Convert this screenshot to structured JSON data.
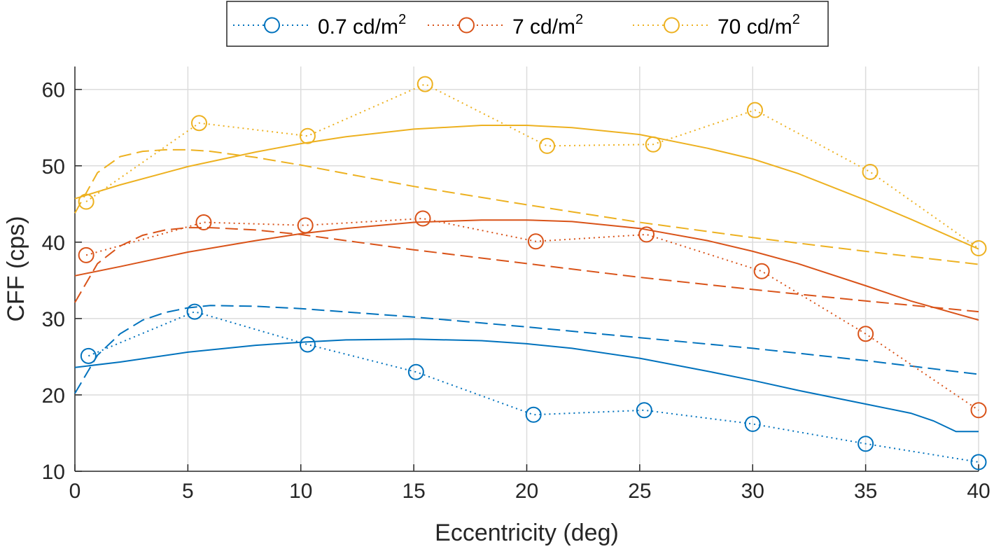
{
  "chart_data": {
    "type": "line",
    "xlabel": "Eccentricity (deg)",
    "ylabel": "CFF (cps)",
    "xlim": [
      0,
      40
    ],
    "ylim": [
      10,
      63
    ],
    "xticks": [
      0,
      5,
      10,
      15,
      20,
      25,
      30,
      35,
      40
    ],
    "yticks": [
      10,
      20,
      30,
      40,
      50,
      60
    ],
    "grid": true,
    "legend_position": "top-center",
    "series": [
      {
        "name": "0.7 cd/m2",
        "legend_base": "0.7 cd/m",
        "legend_sup": "2",
        "color": "#0072BD",
        "measured": {
          "x": [
            0.6,
            5.3,
            10.3,
            15.1,
            20.3,
            25.2,
            30.0,
            35.0,
            40.0
          ],
          "y": [
            25.1,
            30.9,
            26.6,
            23.0,
            17.4,
            18.0,
            16.2,
            13.6,
            11.2
          ]
        },
        "fit_solid": {
          "x": [
            0,
            2,
            5,
            8,
            10,
            12,
            15,
            18,
            20,
            22,
            25,
            28,
            30,
            32,
            35,
            37,
            38,
            39,
            40
          ],
          "y": [
            23.6,
            24.3,
            25.6,
            26.5,
            26.9,
            27.2,
            27.3,
            27.1,
            26.7,
            26.1,
            24.8,
            23.1,
            21.9,
            20.6,
            18.8,
            17.6,
            16.6,
            15.2,
            15.2
          ]
        },
        "fit_dashed": {
          "x": [
            0,
            1,
            2,
            3,
            4,
            5,
            6,
            8,
            10,
            15,
            20,
            25,
            30,
            35,
            40
          ],
          "y": [
            20.2,
            25.2,
            28.0,
            29.8,
            30.8,
            31.4,
            31.7,
            31.6,
            31.3,
            30.2,
            28.9,
            27.5,
            26.1,
            24.5,
            22.7
          ]
        }
      },
      {
        "name": "7 cd/m2",
        "legend_base": "7 cd/m",
        "legend_sup": "2",
        "color": "#D95319",
        "measured": {
          "x": [
            0.5,
            5.7,
            10.2,
            15.4,
            20.4,
            25.3,
            30.4,
            35.0,
            40.0
          ],
          "y": [
            38.3,
            42.6,
            42.2,
            43.1,
            40.1,
            41.0,
            36.2,
            28.0,
            18.0
          ]
        },
        "fit_solid": {
          "x": [
            0,
            2,
            5,
            8,
            10,
            12,
            15,
            18,
            20,
            22,
            25,
            28,
            30,
            32,
            35,
            37,
            40
          ],
          "y": [
            35.6,
            36.8,
            38.7,
            40.2,
            41.1,
            41.8,
            42.6,
            42.9,
            42.9,
            42.7,
            41.8,
            40.2,
            38.8,
            37.2,
            34.3,
            32.3,
            29.8
          ]
        },
        "fit_dashed": {
          "x": [
            0,
            1,
            2,
            3,
            4,
            5,
            6,
            8,
            10,
            15,
            20,
            25,
            30,
            35,
            40
          ],
          "y": [
            32.1,
            37.2,
            39.5,
            40.9,
            41.6,
            41.9,
            41.9,
            41.6,
            41.0,
            39.0,
            37.2,
            35.4,
            33.8,
            32.3,
            30.9
          ]
        }
      },
      {
        "name": "70 cd/m2",
        "legend_base": "70 cd/m",
        "legend_sup": "2",
        "color": "#EDB120",
        "measured": {
          "x": [
            0.5,
            5.5,
            10.3,
            15.5,
            20.9,
            25.6,
            30.1,
            35.2,
            40.0
          ],
          "y": [
            45.3,
            55.6,
            53.9,
            60.7,
            52.6,
            52.8,
            57.3,
            49.2,
            39.2
          ]
        },
        "fit_solid": {
          "x": [
            0,
            2,
            5,
            8,
            10,
            12,
            15,
            18,
            20,
            22,
            25,
            28,
            30,
            32,
            35,
            37,
            40
          ],
          "y": [
            45.7,
            47.5,
            49.9,
            51.8,
            52.9,
            53.8,
            54.8,
            55.3,
            55.3,
            55.0,
            54.1,
            52.3,
            50.9,
            49.0,
            45.5,
            43.0,
            39.1
          ]
        },
        "fit_dashed": {
          "x": [
            0,
            1,
            2,
            3,
            4,
            5,
            6,
            8,
            10,
            15,
            20,
            25,
            30,
            35,
            40
          ],
          "y": [
            43.8,
            49.1,
            51.2,
            51.9,
            52.1,
            52.1,
            51.9,
            51.1,
            50.1,
            47.3,
            44.9,
            42.6,
            40.6,
            38.8,
            37.1
          ]
        }
      }
    ]
  }
}
